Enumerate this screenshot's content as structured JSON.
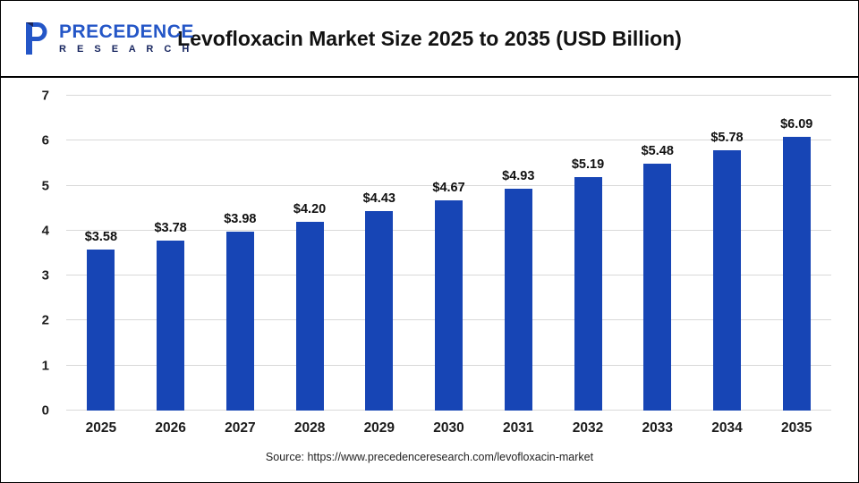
{
  "header": {
    "title": "Levofloxacin Market Size 2025 to 2035 (USD Billion)",
    "logo": {
      "line1": "PRECEDENCE",
      "line2": "R E S E A R C H"
    }
  },
  "chart_data": {
    "type": "bar",
    "title": "Levofloxacin Market Size 2025 to 2035 (USD Billion)",
    "categories": [
      "2025",
      "2026",
      "2027",
      "2028",
      "2029",
      "2030",
      "2031",
      "2032",
      "2033",
      "2034",
      "2035"
    ],
    "values": [
      3.58,
      3.78,
      3.98,
      4.2,
      4.43,
      4.67,
      4.93,
      5.19,
      5.48,
      5.78,
      6.09
    ],
    "labels": [
      "$3.58",
      "$3.78",
      "$3.98",
      "$4.20",
      "$4.43",
      "$4.67",
      "$4.93",
      "$5.19",
      "$5.48",
      "$5.78",
      "$6.09"
    ],
    "xlabel": "",
    "ylabel": "",
    "ylim": [
      0,
      7
    ],
    "yticks": [
      0,
      1,
      2,
      3,
      4,
      5,
      6,
      7
    ],
    "grid": true,
    "legend": "none",
    "bar_color": "#1745b5",
    "gridline_color": "#d9d9d9"
  },
  "footer": {
    "source": "Source: https://www.precedenceresearch.com/levofloxacin-market"
  }
}
